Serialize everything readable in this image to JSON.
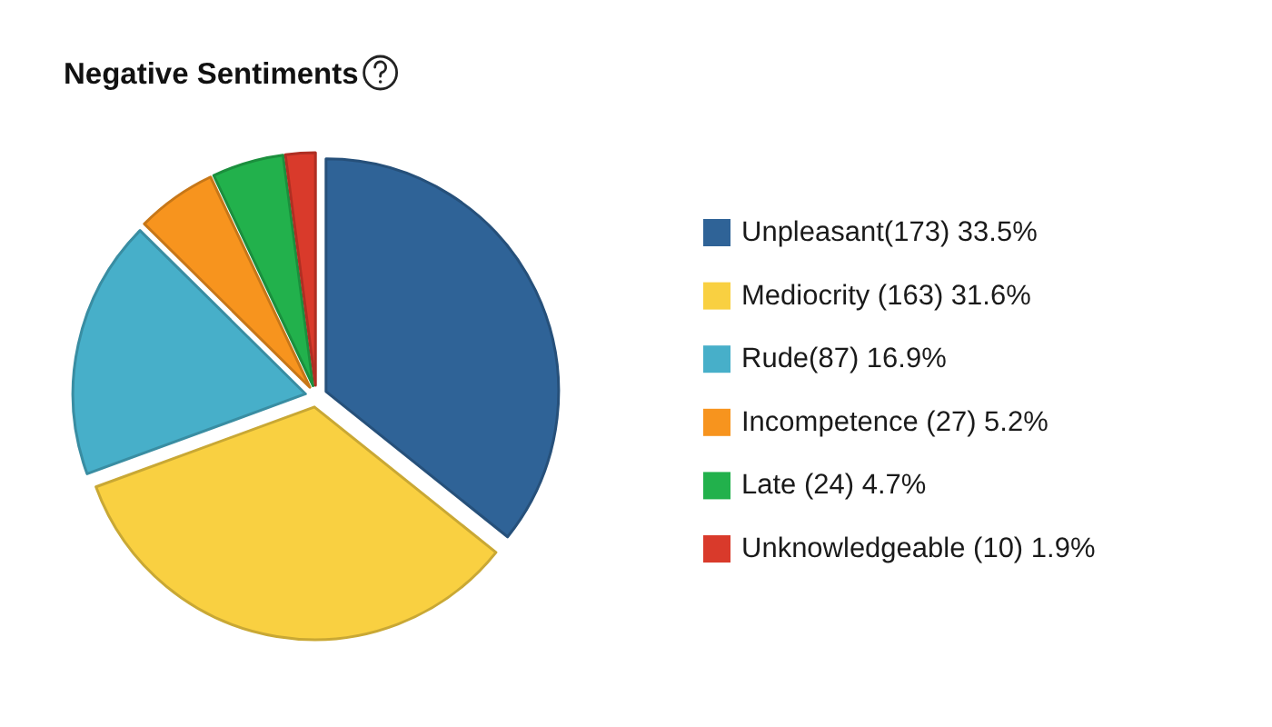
{
  "chart_data": {
    "type": "pie",
    "title": "Negative Sentiments",
    "categories": [
      "Unpleasant(173) 33.5%",
      "Mediocrity (163) 31.6%",
      "Rude(87) 16.9%",
      "Incompetence (27) 5.2%",
      "Late (24) 4.7%",
      "Unknowledgeable (10) 1.9%"
    ],
    "values": [
      173,
      163,
      87,
      27,
      24,
      10
    ],
    "colors": [
      "#2f6397",
      "#f9d041",
      "#47afc9",
      "#f7941e",
      "#22b14c",
      "#d93a2b"
    ],
    "legend": "right"
  }
}
